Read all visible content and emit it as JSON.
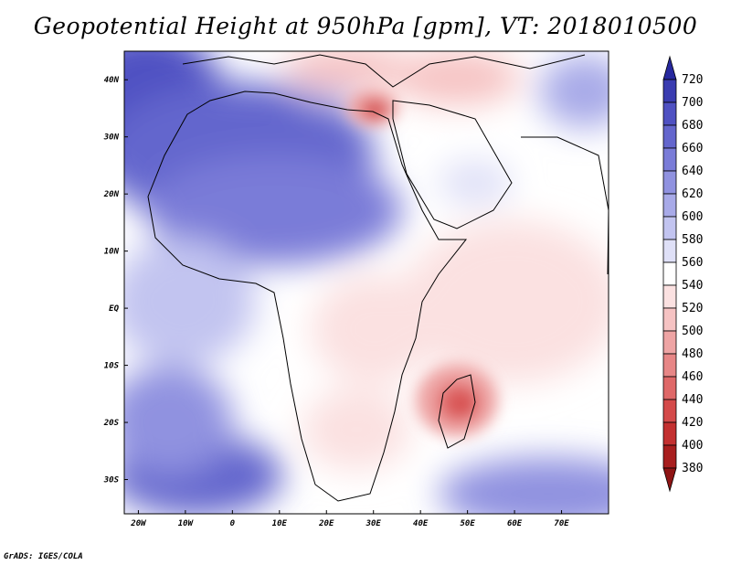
{
  "title": "Geopotential Height at 950hPa [gpm], VT: 2018010500",
  "credit": "GrADS: IGES/COLA",
  "map": {
    "lon_range": [
      -23,
      80
    ],
    "lat_range": [
      -36,
      45
    ],
    "lon_ticks": [
      {
        "value": -20,
        "label": "20W"
      },
      {
        "value": -10,
        "label": "10W"
      },
      {
        "value": 0,
        "label": "0"
      },
      {
        "value": 10,
        "label": "10E"
      },
      {
        "value": 20,
        "label": "20E"
      },
      {
        "value": 30,
        "label": "30E"
      },
      {
        "value": 40,
        "label": "40E"
      },
      {
        "value": 50,
        "label": "50E"
      },
      {
        "value": 60,
        "label": "60E"
      },
      {
        "value": 70,
        "label": "70E"
      }
    ],
    "lat_ticks": [
      {
        "value": 40,
        "label": "40N"
      },
      {
        "value": 30,
        "label": "30N"
      },
      {
        "value": 20,
        "label": "20N"
      },
      {
        "value": 10,
        "label": "10N"
      },
      {
        "value": 0,
        "label": "EQ"
      },
      {
        "value": -10,
        "label": "10S"
      },
      {
        "value": -20,
        "label": "20S"
      },
      {
        "value": -30,
        "label": "30S"
      }
    ]
  },
  "colorbar": {
    "levels": [
      720,
      700,
      680,
      660,
      640,
      620,
      600,
      580,
      560,
      540,
      520,
      500,
      480,
      460,
      440,
      420,
      400,
      380
    ],
    "colors": [
      "#27289e",
      "#3a3cb0",
      "#4f51c2",
      "#6466cd",
      "#7a7cd8",
      "#9092e0",
      "#a8aae8",
      "#c2c4f0",
      "#dfe0f7",
      "#ffffff",
      "#fbe1e1",
      "#f6c3c3",
      "#eea4a4",
      "#e78686",
      "#df6868",
      "#d44a4a",
      "#c33030",
      "#a81e1e",
      "#8e1414"
    ]
  }
}
